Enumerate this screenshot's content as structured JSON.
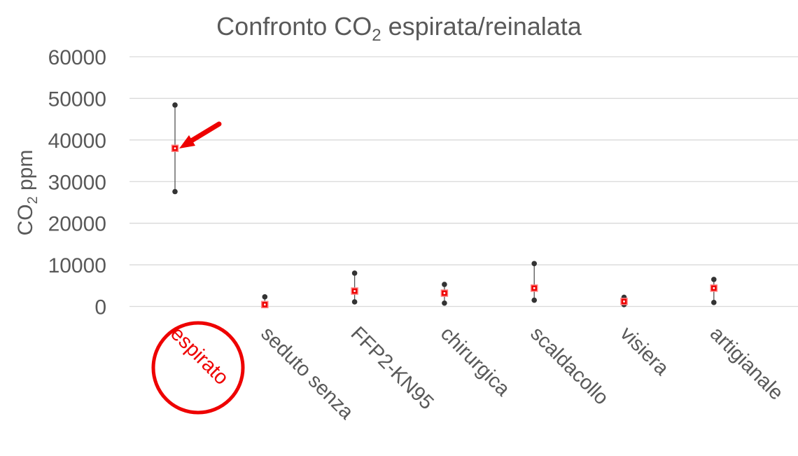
{
  "chart_data": {
    "type": "scatter",
    "subtype": "high-low-mean",
    "title": "Confronto CO",
    "title_sub": "2",
    "title_rest": " espirata/reinalata",
    "ylabel": "CO",
    "ylabel_sub": "2",
    "ylabel_rest": " ppm",
    "ylim": [
      0,
      60000
    ],
    "yticks": [
      0,
      10000,
      20000,
      30000,
      40000,
      50000,
      60000
    ],
    "ytick_labels": [
      "0",
      "10000",
      "20000",
      "30000",
      "40000",
      "50000",
      "60000"
    ],
    "grid": true,
    "categories": [
      "espirato",
      "seduto senza",
      "FFP2-KN95",
      "chirurgica",
      "scaldacollo",
      "visiera",
      "artigianale"
    ],
    "high": [
      48400,
      2300,
      8000,
      5300,
      10300,
      2200,
      6500
    ],
    "mean": [
      38000,
      450,
      3700,
      3200,
      4400,
      1200,
      4400
    ],
    "low": [
      27600,
      200,
      1100,
      800,
      1500,
      450,
      950
    ],
    "highlighted_category": "espirato",
    "colors": {
      "highlight": "#ee0000",
      "marker": "#333333",
      "mean": "#ee0000",
      "text": "#595959",
      "grid": "#d9d9d9"
    }
  }
}
